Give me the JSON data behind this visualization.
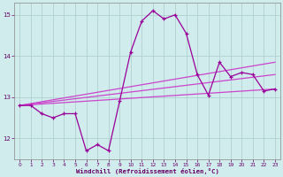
{
  "xlabel": "Windchill (Refroidissement éolien,°C)",
  "x": [
    0,
    1,
    2,
    3,
    4,
    5,
    6,
    7,
    8,
    9,
    10,
    11,
    12,
    13,
    14,
    15,
    16,
    17,
    18,
    19,
    20,
    21,
    22,
    23
  ],
  "y_main": [
    12.8,
    12.8,
    12.6,
    12.5,
    12.6,
    12.6,
    11.7,
    11.85,
    11.7,
    12.9,
    14.1,
    14.85,
    15.1,
    14.9,
    15.0,
    14.55,
    13.55,
    13.05,
    13.85,
    13.5,
    13.6,
    13.55,
    13.15,
    13.2
  ],
  "reg_line1_start": 12.8,
  "reg_line1_end": 13.85,
  "reg_line2_start": 12.8,
  "reg_line2_end": 13.55,
  "reg_line3_start": 12.8,
  "reg_line3_end": 13.2,
  "color_main": "#990099",
  "color_lines": "#cc44cc",
  "bg_color": "#d0ecec",
  "grid_color": "#aacccc",
  "ylim": [
    11.5,
    15.3
  ],
  "xlim_min": -0.5,
  "xlim_max": 23.5,
  "yticks": [
    12,
    13,
    14,
    15
  ],
  "xticks": [
    0,
    1,
    2,
    3,
    4,
    5,
    6,
    7,
    8,
    9,
    10,
    11,
    12,
    13,
    14,
    15,
    16,
    17,
    18,
    19,
    20,
    21,
    22,
    23
  ]
}
